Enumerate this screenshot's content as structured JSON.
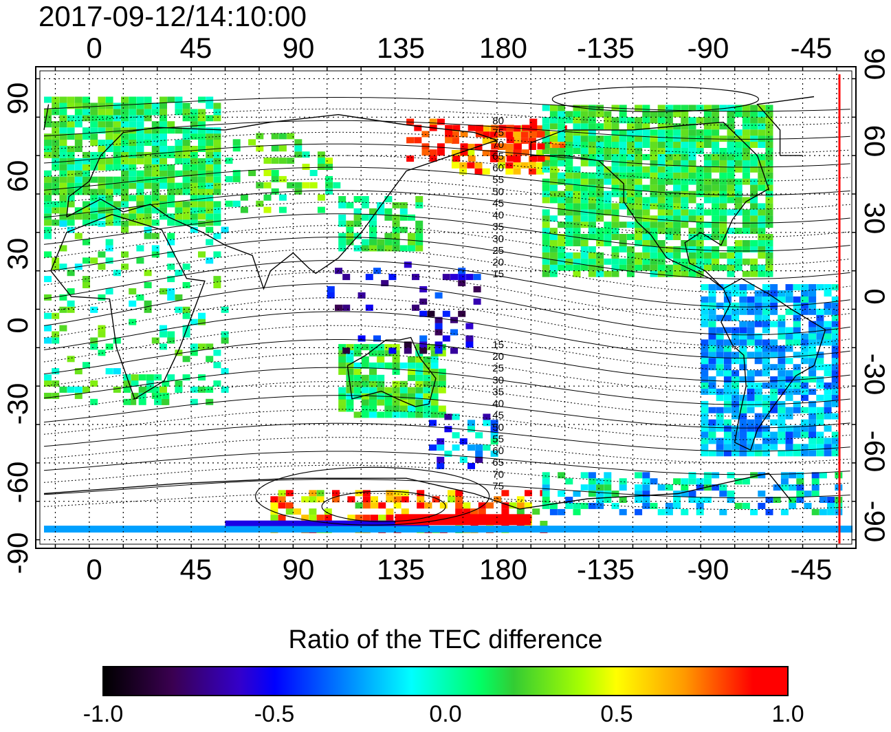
{
  "header": {
    "timestamp": "2017-09-12/14:10:00"
  },
  "map": {
    "projection": "equirectangular",
    "lon_ticks_top": [
      "0",
      "45",
      "90",
      "135",
      "180",
      "-135",
      "-90",
      "-45"
    ],
    "lon_ticks_bottom": [
      "0",
      "45",
      "90",
      "135",
      "180",
      "-135",
      "-90",
      "-45"
    ],
    "lat_ticks_left": [
      "90",
      "60",
      "30",
      "0",
      "-30",
      "-60",
      "-90"
    ],
    "lat_ticks_right": [
      "90",
      "60",
      "30",
      "0",
      "-30",
      "-60",
      "-90"
    ],
    "lon_range": [
      -20,
      337
    ],
    "lat_range": [
      -92,
      92
    ],
    "magnetic_latitude_labels": [
      "80",
      "75",
      "70",
      "65",
      "60",
      "55",
      "50",
      "45",
      "40",
      "35",
      "30",
      "25",
      "20",
      "15",
      "15",
      "20",
      "25",
      "30",
      "35",
      "40",
      "45",
      "50",
      "55",
      "60",
      "65",
      "70",
      "75"
    ],
    "terminator_color": "#ff0000",
    "terminator_lon": -42
  },
  "colorbar": {
    "title": "Ratio of the TEC difference",
    "labels": [
      "-1.0",
      "-0.5",
      "0.0",
      "0.5",
      "1.0"
    ],
    "range": [
      -1.0,
      1.0
    ]
  }
}
